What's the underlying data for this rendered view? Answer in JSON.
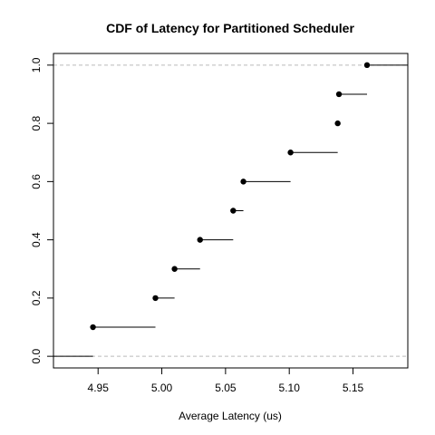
{
  "chart_data": {
    "type": "step-cdf",
    "title": "CDF of Latency for Partitioned Scheduler",
    "xlabel": "Average Latency (us)",
    "ylabel": "",
    "xlim": [
      4.915,
      5.193
    ],
    "ylim": [
      -0.04,
      1.04
    ],
    "x_ticks": [
      4.95,
      5.0,
      5.05,
      5.1,
      5.15
    ],
    "x_tick_labels": [
      "4.95",
      "5.00",
      "5.05",
      "5.10",
      "5.15"
    ],
    "y_ticks": [
      0.0,
      0.2,
      0.4,
      0.6,
      0.8,
      1.0
    ],
    "y_tick_labels": [
      "0.0",
      "0.2",
      "0.4",
      "0.6",
      "0.8",
      "1.0"
    ],
    "reference_lines_y": [
      0.0,
      1.0
    ],
    "points": [
      {
        "x": 4.946,
        "y": 0.1
      },
      {
        "x": 4.995,
        "y": 0.2
      },
      {
        "x": 5.01,
        "y": 0.3
      },
      {
        "x": 5.03,
        "y": 0.4
      },
      {
        "x": 5.056,
        "y": 0.5
      },
      {
        "x": 5.064,
        "y": 0.6
      },
      {
        "x": 5.101,
        "y": 0.7
      },
      {
        "x": 5.138,
        "y": 0.8
      },
      {
        "x": 5.139,
        "y": 0.9
      },
      {
        "x": 5.161,
        "y": 1.0
      }
    ],
    "colors": {
      "points": "#000000",
      "lines": "#000000",
      "reference": "#bbbbbb"
    }
  }
}
